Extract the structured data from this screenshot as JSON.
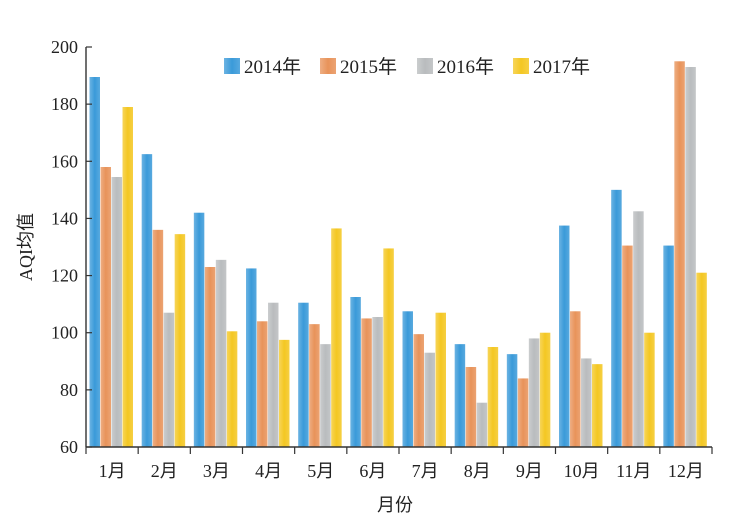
{
  "chart_data": {
    "type": "bar",
    "title": "",
    "xlabel": "月份",
    "ylabel": "AQI均值",
    "ylim": [
      60,
      200
    ],
    "yticks": [
      60,
      80,
      100,
      120,
      140,
      160,
      180,
      200
    ],
    "grid": false,
    "legend_position": "top-center",
    "categories": [
      "1月",
      "2月",
      "3月",
      "4月",
      "5月",
      "6月",
      "7月",
      "8月",
      "9月",
      "10月",
      "11月",
      "12月"
    ],
    "series": [
      {
        "name": "2014年",
        "color": "#3a9ad9",
        "values": [
          189.5,
          162.5,
          142,
          122.5,
          110.5,
          112.5,
          107.5,
          96,
          92.5,
          137.5,
          150,
          130.5
        ]
      },
      {
        "name": "2015年",
        "color": "#e8935a",
        "values": [
          158,
          136,
          123,
          104,
          103,
          105,
          99.5,
          88,
          84,
          107.5,
          130.5,
          195
        ]
      },
      {
        "name": "2016年",
        "color": "#b9bcbe",
        "values": [
          154.5,
          107,
          125.5,
          110.5,
          96,
          105.5,
          93,
          75.5,
          98,
          91,
          142.5,
          193
        ]
      },
      {
        "name": "2017年",
        "color": "#f4c722",
        "values": [
          179,
          134.5,
          100.5,
          97.5,
          136.5,
          129.5,
          107,
          95,
          100,
          89,
          100,
          121
        ]
      }
    ]
  }
}
